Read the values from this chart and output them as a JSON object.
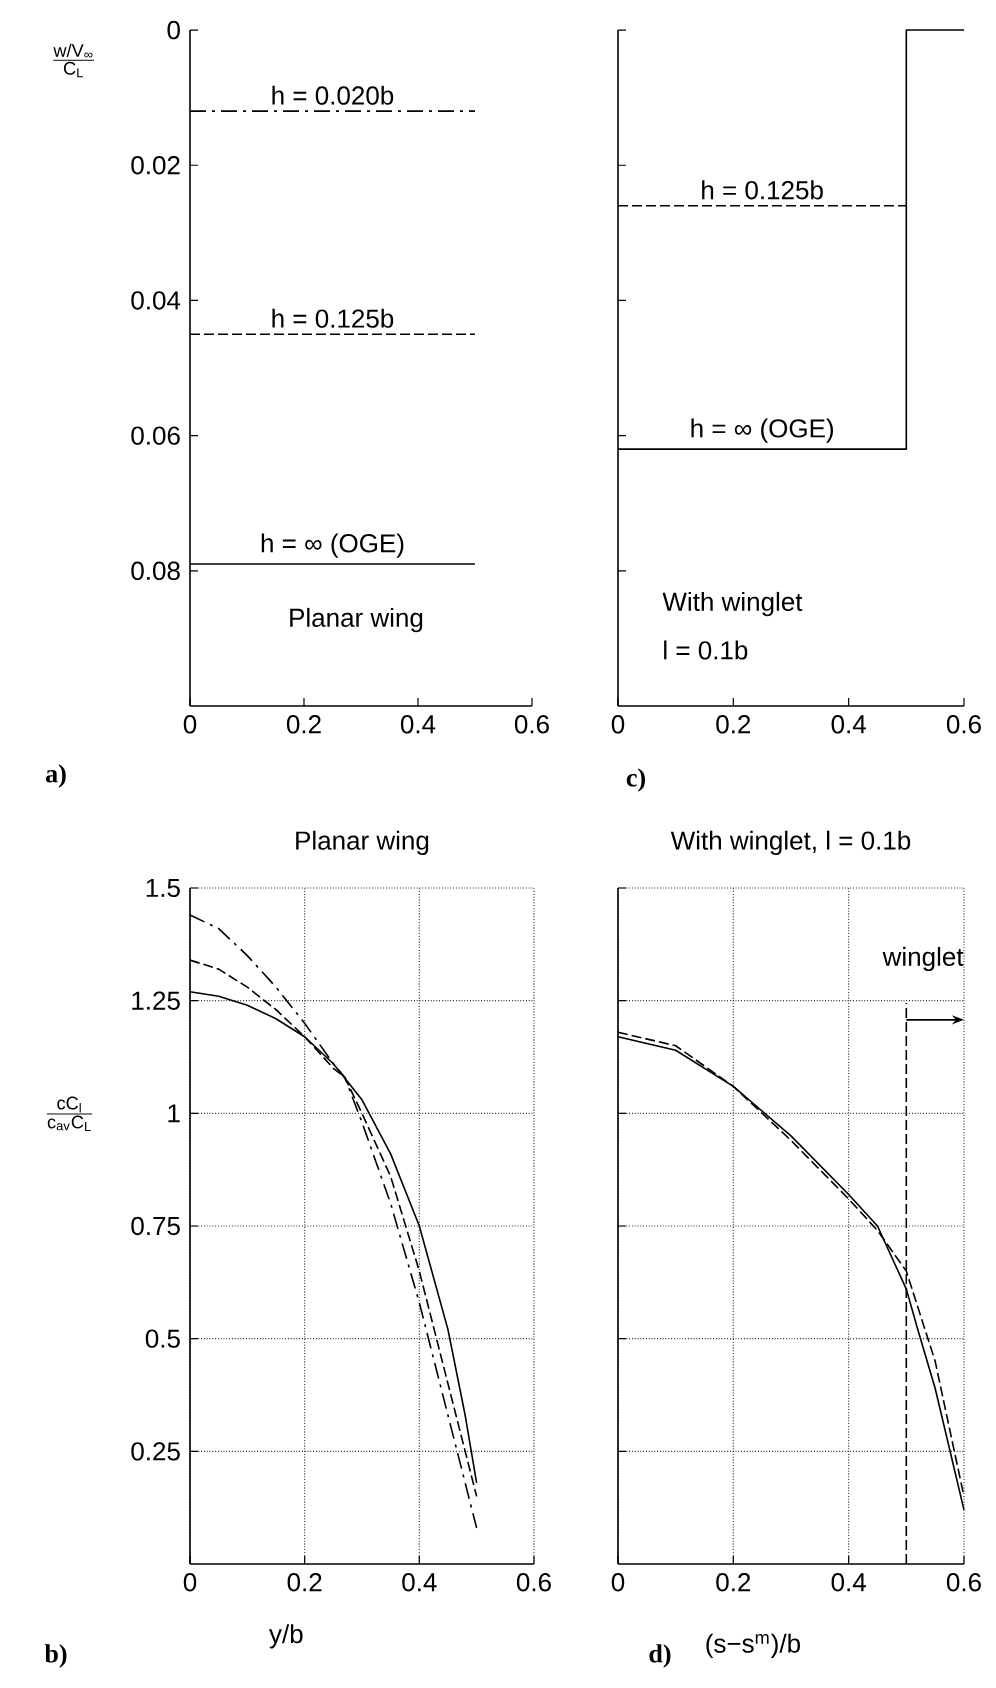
{
  "chart_data": [
    {
      "type": "line",
      "xlim": [
        0,
        0.6
      ],
      "xticks": [
        0,
        0.2,
        0.4,
        0.6
      ],
      "ylim": [
        0.1,
        0
      ],
      "yticks": [
        0,
        0.02,
        0.04,
        0.06,
        0.08
      ],
      "ylabel": "\\frac{\\text{w/V}_{\\text{∞}}}{\\text{C}_{\\text{L}}}",
      "annotations": [
        "Planar wing",
        "a)"
      ],
      "series": [
        {
          "name": "h = 0.020b",
          "color": "#000000",
          "line_style": "dashdot",
          "x": [
            0,
            0.5
          ],
          "values": [
            0.012,
            0.012
          ]
        },
        {
          "name": "h = 0.125b",
          "color": "#000000",
          "line_style": "dashed",
          "x": [
            0,
            0.5
          ],
          "values": [
            0.045,
            0.045
          ]
        },
        {
          "name": "h = ∞ (OGE)",
          "color": "#000000",
          "line_style": "solid",
          "x": [
            0,
            0.5
          ],
          "values": [
            0.079,
            0.079
          ]
        }
      ]
    },
    {
      "type": "line",
      "xlim": [
        0,
        0.6
      ],
      "xticks": [
        0,
        0.2,
        0.4,
        0.6
      ],
      "ylim": [
        0.1,
        0
      ],
      "yticks": [
        0,
        0.02,
        0.04,
        0.06,
        0.08
      ],
      "tick_labels": "x",
      "annotations": [
        "With winglet",
        "l = 0.1b",
        "c)"
      ],
      "series": [
        {
          "name": "h = 0.125b",
          "color": "#000000",
          "line_style": "dashed",
          "x": [
            0,
            0.5
          ],
          "values": [
            0.026,
            0.026
          ]
        },
        {
          "name": "h = ∞ (OGE)",
          "color": "#000000",
          "line_style": "solid",
          "x": [
            0,
            0.5,
            0.5,
            0.6
          ],
          "values": [
            0.062,
            0.062,
            0,
            0
          ]
        }
      ]
    },
    {
      "type": "line",
      "title": "Planar wing",
      "xlabel": "y/b",
      "ylabel": "\\frac{\\text{cC}_{\\text{l}}}{\\text{c}_{\\text{av}}\\text{C}_{\\text{L}}}",
      "xlim": [
        0,
        0.6
      ],
      "xticks": [
        0,
        0.2,
        0.4,
        0.6
      ],
      "ylim": [
        0,
        1.5
      ],
      "yticks": [
        0.25,
        0.5,
        0.75,
        1,
        1.25,
        1.5
      ],
      "grid": true,
      "annotations": [
        "b)"
      ],
      "series": [
        {
          "color": "#000000",
          "line_style": "dashdot",
          "x": [
            0,
            0.05,
            0.1,
            0.15,
            0.2,
            0.25,
            0.27,
            0.3,
            0.35,
            0.4,
            0.45,
            0.48,
            0.5
          ],
          "values": [
            1.44,
            1.41,
            1.35,
            1.28,
            1.2,
            1.11,
            1.08,
            0.98,
            0.8,
            0.58,
            0.33,
            0.18,
            0.08
          ]
        },
        {
          "color": "#000000",
          "line_style": "dashed",
          "x": [
            0,
            0.05,
            0.1,
            0.15,
            0.2,
            0.25,
            0.27,
            0.3,
            0.35,
            0.4,
            0.45,
            0.48,
            0.5
          ],
          "values": [
            1.34,
            1.32,
            1.28,
            1.23,
            1.17,
            1.1,
            1.08,
            1.0,
            0.86,
            0.65,
            0.4,
            0.25,
            0.15
          ]
        },
        {
          "color": "#000000",
          "line_style": "solid",
          "x": [
            0,
            0.05,
            0.1,
            0.15,
            0.2,
            0.25,
            0.3,
            0.35,
            0.4,
            0.45,
            0.48,
            0.5
          ],
          "values": [
            1.27,
            1.26,
            1.24,
            1.21,
            1.17,
            1.11,
            1.03,
            0.91,
            0.75,
            0.52,
            0.33,
            0.18
          ]
        }
      ]
    },
    {
      "type": "line",
      "title": "With winglet, l = 0.1b",
      "xlabel": "(s−s$^{m}$)/b",
      "xlim": [
        0,
        0.6
      ],
      "xticks": [
        0,
        0.2,
        0.4,
        0.6
      ],
      "ylim": [
        0,
        1.5
      ],
      "yticks": [
        0.25,
        0.5,
        0.75,
        1,
        1.25,
        1.5
      ],
      "tick_labels": "x",
      "grid": true,
      "annotations": [
        "d)"
      ],
      "ref_lines": [
        {
          "axis": "x",
          "value": 0.5,
          "label": "winglet",
          "line_style": "dashed",
          "color": "#000000"
        }
      ],
      "series": [
        {
          "color": "#000000",
          "line_style": "dashed",
          "x": [
            0,
            0.1,
            0.2,
            0.3,
            0.4,
            0.45,
            0.5,
            0.55,
            0.6
          ],
          "values": [
            1.18,
            1.15,
            1.06,
            0.94,
            0.81,
            0.74,
            0.65,
            0.45,
            0.15
          ]
        },
        {
          "color": "#000000",
          "line_style": "solid",
          "x": [
            0,
            0.1,
            0.2,
            0.3,
            0.4,
            0.45,
            0.5,
            0.52,
            0.55,
            0.6
          ],
          "values": [
            1.17,
            1.14,
            1.06,
            0.95,
            0.82,
            0.75,
            0.61,
            0.52,
            0.39,
            0.12
          ]
        }
      ]
    }
  ]
}
